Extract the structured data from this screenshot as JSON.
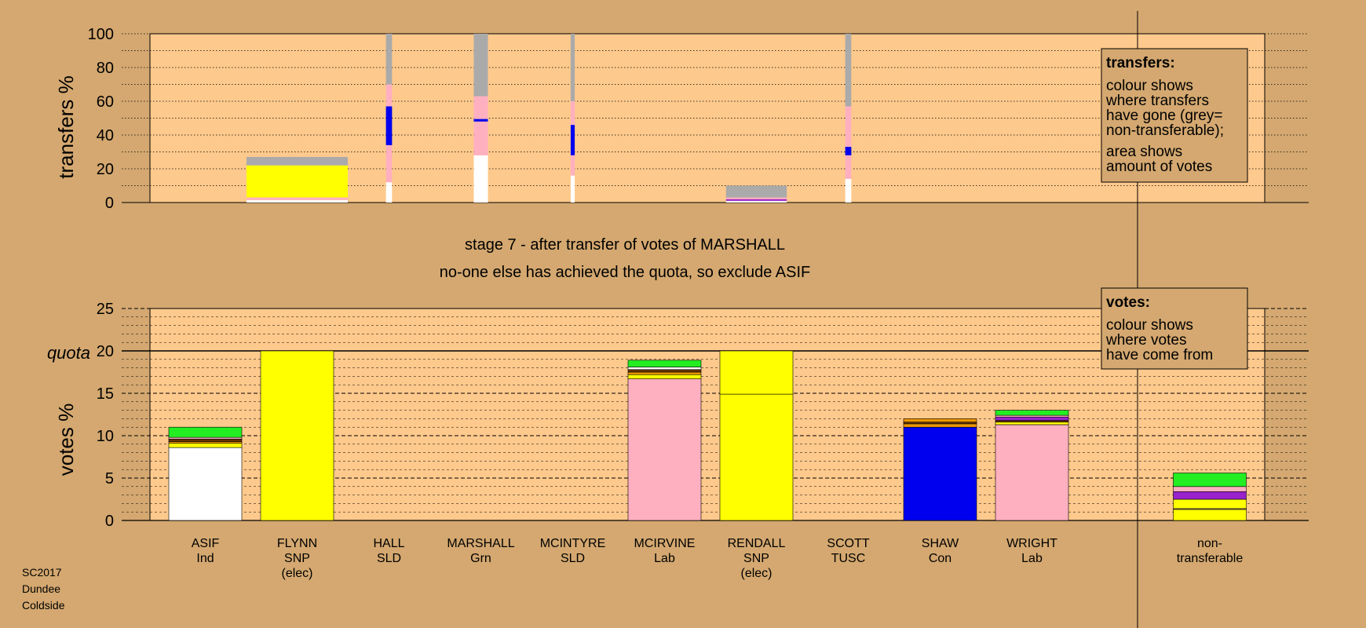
{
  "colors": {
    "background": "#d4a870",
    "plot_bg": "#fec98c",
    "white": "#ffffff",
    "yellow": "#ffff00",
    "pink": "#ffb0c0",
    "blue": "#0000ee",
    "grey": "#aaaaaa",
    "green": "#22ee22",
    "purple": "#9922cc",
    "brown": "#663300",
    "orange": "#ee9900",
    "darkblue": "#000088"
  },
  "footer": {
    "line1": "SC2017",
    "line2": "Dundee",
    "line3": "Coldside"
  },
  "stage": {
    "line1": "stage 7 - after transfer of votes of MARSHALL",
    "line2": "no-one else has achieved the quota, so exclude ASIF"
  },
  "legend_transfers": {
    "title": "transfers:",
    "lines": [
      "colour shows",
      "where transfers",
      "have gone (grey=",
      "non-transferable);"
    ],
    "lines2": [
      "area shows",
      "amount of votes"
    ]
  },
  "legend_votes": {
    "title": "votes:",
    "lines": [
      "colour shows",
      "where votes",
      "have come from"
    ]
  },
  "chart_data": [
    {
      "type": "bar",
      "ylabel": "transfers %",
      "ylim": [
        0,
        100
      ],
      "yticks": [
        0,
        20,
        40,
        60,
        80,
        100
      ],
      "bars": [
        {
          "candidate": "FLYNN",
          "width_frac": 1.0,
          "segments": [
            {
              "color": "white",
              "value": 1.5
            },
            {
              "color": "pink",
              "value": 1.5
            },
            {
              "color": "yellow",
              "value": 19
            },
            {
              "color": "grey",
              "value": 5
            }
          ]
        },
        {
          "candidate": "HALL",
          "width_frac": 0.06,
          "segments": [
            {
              "color": "white",
              "value": 12
            },
            {
              "color": "pink",
              "value": 22
            },
            {
              "color": "blue",
              "value": 23
            },
            {
              "color": "pink",
              "value": 13
            },
            {
              "color": "grey",
              "value": 30
            }
          ]
        },
        {
          "candidate": "MARSHALL",
          "width_frac": 0.14,
          "segments": [
            {
              "color": "white",
              "value": 28
            },
            {
              "color": "pink",
              "value": 20
            },
            {
              "color": "blue",
              "value": 1.5
            },
            {
              "color": "pink",
              "value": 13.5
            },
            {
              "color": "grey",
              "value": 37
            }
          ]
        },
        {
          "candidate": "MCINTYRE",
          "width_frac": 0.04,
          "segments": [
            {
              "color": "white",
              "value": 16
            },
            {
              "color": "pink",
              "value": 12
            },
            {
              "color": "blue",
              "value": 18
            },
            {
              "color": "pink",
              "value": 14
            },
            {
              "color": "grey",
              "value": 40
            }
          ]
        },
        {
          "candidate": "RENDALL",
          "width_frac": 0.6,
          "segments": [
            {
              "color": "white",
              "value": 1
            },
            {
              "color": "purple",
              "value": 1
            },
            {
              "color": "pink",
              "value": 1
            },
            {
              "color": "grey",
              "value": 7
            }
          ]
        },
        {
          "candidate": "SCOTT",
          "width_frac": 0.06,
          "segments": [
            {
              "color": "white",
              "value": 14
            },
            {
              "color": "pink",
              "value": 14
            },
            {
              "color": "blue",
              "value": 5
            },
            {
              "color": "pink",
              "value": 24
            },
            {
              "color": "grey",
              "value": 43
            }
          ]
        }
      ]
    },
    {
      "type": "bar",
      "ylabel": "votes %",
      "ylim": [
        0,
        25
      ],
      "yticks": [
        0,
        5,
        10,
        15,
        20,
        25
      ],
      "quota": 20,
      "quota_label": "quota",
      "candidates": [
        {
          "name": "ASIF",
          "party": "Ind",
          "note": ""
        },
        {
          "name": "FLYNN",
          "party": "SNP",
          "note": "(elec)"
        },
        {
          "name": "HALL",
          "party": "SLD",
          "note": ""
        },
        {
          "name": "MARSHALL",
          "party": "Grn",
          "note": ""
        },
        {
          "name": "MCINTYRE",
          "party": "SLD",
          "note": ""
        },
        {
          "name": "MCIRVINE",
          "party": "Lab",
          "note": ""
        },
        {
          "name": "RENDALL",
          "party": "SNP",
          "note": "(elec)"
        },
        {
          "name": "SCOTT",
          "party": "TUSC",
          "note": ""
        },
        {
          "name": "SHAW",
          "party": "Con",
          "note": ""
        },
        {
          "name": "WRIGHT",
          "party": "Lab",
          "note": ""
        }
      ],
      "nontransferable": {
        "line1": "non-",
        "line2": "transferable"
      },
      "bars": [
        {
          "candidate": "ASIF",
          "segments": [
            {
              "color": "white",
              "value": 8.6
            },
            {
              "color": "yellow",
              "value": 0.5
            },
            {
              "color": "orange",
              "value": 0.2
            },
            {
              "color": "brown",
              "value": 0.3
            },
            {
              "color": "pink",
              "value": 0.2
            },
            {
              "color": "green",
              "value": 1.2
            }
          ]
        },
        {
          "candidate": "FLYNN",
          "segments": [
            {
              "color": "yellow",
              "value": 20
            }
          ]
        },
        {
          "candidate": "MCIRVINE",
          "segments": [
            {
              "color": "pink",
              "value": 16.7
            },
            {
              "color": "yellow",
              "value": 0.5
            },
            {
              "color": "orange",
              "value": 0.3
            },
            {
              "color": "brown",
              "value": 0.3
            },
            {
              "color": "white",
              "value": 0.3
            },
            {
              "color": "green",
              "value": 0.8
            }
          ]
        },
        {
          "candidate": "RENDALL",
          "segments": [
            {
              "color": "yellow",
              "value": 14.9
            },
            {
              "color": "yellow",
              "value": 5.1
            }
          ]
        },
        {
          "candidate": "SHAW",
          "segments": [
            {
              "color": "blue",
              "value": 11
            },
            {
              "color": "orange",
              "value": 0.4
            },
            {
              "color": "brown",
              "value": 0.2
            },
            {
              "color": "orange",
              "value": 0.4
            }
          ]
        },
        {
          "candidate": "WRIGHT",
          "segments": [
            {
              "color": "pink",
              "value": 11.3
            },
            {
              "color": "yellow",
              "value": 0.3
            },
            {
              "color": "brown",
              "value": 0.2
            },
            {
              "color": "purple",
              "value": 0.4
            },
            {
              "color": "pink",
              "value": 0.2
            },
            {
              "color": "green",
              "value": 0.6
            }
          ]
        },
        {
          "candidate": "non-transferable",
          "segments": [
            {
              "color": "yellow",
              "value": 1.3
            },
            {
              "color": "pink",
              "value": 0.1
            },
            {
              "color": "yellow",
              "value": 1.1
            },
            {
              "color": "purple",
              "value": 0.9
            },
            {
              "color": "pink",
              "value": 0.6
            },
            {
              "color": "green",
              "value": 1.6
            }
          ]
        }
      ]
    }
  ]
}
